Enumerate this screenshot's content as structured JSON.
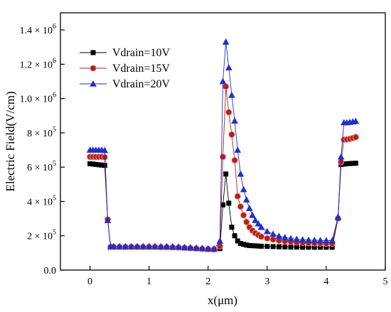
{
  "chart_data": {
    "type": "scatter",
    "xlabel": "x(μm)",
    "ylabel": "Electric Field(V/cm)",
    "xlim": [
      -0.5,
      5
    ],
    "ylim": [
      0,
      1500000
    ],
    "x_ticks": [
      0,
      1,
      2,
      3,
      4,
      5
    ],
    "x_tick_labels": [
      "0",
      "1",
      "2",
      "3",
      "4",
      "5"
    ],
    "y_ticks": [
      0,
      200000,
      400000,
      600000,
      800000,
      1000000,
      1200000,
      1400000
    ],
    "y_tick_labels": [
      {
        "mantissa": "0.0",
        "exp": ""
      },
      {
        "mantissa": "2 × 10",
        "exp": "5"
      },
      {
        "mantissa": "4 × 10",
        "exp": "5"
      },
      {
        "mantissa": "6 × 10",
        "exp": "5"
      },
      {
        "mantissa": "8 × 10",
        "exp": "5"
      },
      {
        "mantissa": "1.0 × 10",
        "exp": "6"
      },
      {
        "mantissa": "1.2 × 10",
        "exp": "6"
      },
      {
        "mantissa": "1.4 × 10",
        "exp": "6"
      }
    ],
    "grid": false,
    "legend_position": "top-left",
    "series": [
      {
        "name": "Vdrain=10V",
        "marker": "square",
        "color": "#000000",
        "x": [
          0,
          0.05,
          0.1,
          0.15,
          0.2,
          0.25,
          0.3,
          0.35,
          0.4,
          0.5,
          0.6,
          0.7,
          0.8,
          0.9,
          1.0,
          1.1,
          1.2,
          1.3,
          1.4,
          1.5,
          1.6,
          1.7,
          1.8,
          1.9,
          2.0,
          2.1,
          2.2,
          2.25,
          2.3,
          2.35,
          2.4,
          2.45,
          2.5,
          2.55,
          2.6,
          2.65,
          2.7,
          2.75,
          2.8,
          2.85,
          2.9,
          3.0,
          3.1,
          3.2,
          3.3,
          3.4,
          3.5,
          3.6,
          3.7,
          3.8,
          3.9,
          4.0,
          4.1,
          4.2,
          4.25,
          4.3,
          4.35,
          4.4,
          4.45,
          4.5
        ],
        "y": [
          620000,
          618000,
          616000,
          614000,
          612000,
          610000,
          290000,
          133000,
          133000,
          133000,
          133000,
          133000,
          133000,
          133000,
          133000,
          133000,
          132000,
          132000,
          131000,
          130000,
          128000,
          126000,
          124000,
          122000,
          120000,
          119000,
          125000,
          380000,
          560000,
          390000,
          250000,
          200000,
          170000,
          155000,
          150000,
          146000,
          143000,
          142000,
          141000,
          140000,
          139000,
          138000,
          137000,
          136000,
          135000,
          134000,
          134000,
          133000,
          133000,
          133000,
          133000,
          133000,
          133000,
          300000,
          615000,
          618000,
          620000,
          621000,
          622000,
          623000
        ]
      },
      {
        "name": "Vdrain=15V",
        "marker": "circle",
        "color": "#b0221a",
        "x": [
          0,
          0.05,
          0.1,
          0.15,
          0.2,
          0.25,
          0.3,
          0.35,
          0.4,
          0.5,
          0.6,
          0.7,
          0.8,
          0.9,
          1.0,
          1.1,
          1.2,
          1.3,
          1.4,
          1.5,
          1.6,
          1.7,
          1.8,
          1.9,
          2.0,
          2.1,
          2.2,
          2.25,
          2.3,
          2.35,
          2.4,
          2.45,
          2.5,
          2.55,
          2.6,
          2.65,
          2.7,
          2.75,
          2.8,
          2.85,
          2.9,
          3.0,
          3.1,
          3.2,
          3.3,
          3.4,
          3.5,
          3.6,
          3.7,
          3.8,
          3.9,
          4.0,
          4.1,
          4.2,
          4.25,
          4.3,
          4.35,
          4.4,
          4.45,
          4.5
        ],
        "y": [
          660000,
          660000,
          660000,
          660000,
          660000,
          658000,
          295000,
          135000,
          135000,
          135000,
          135000,
          135000,
          135000,
          135000,
          135000,
          135000,
          134000,
          134000,
          133000,
          132000,
          130000,
          128000,
          126000,
          124000,
          122000,
          121000,
          140000,
          660000,
          1070000,
          920000,
          790000,
          640000,
          430000,
          370000,
          320000,
          280000,
          250000,
          230000,
          215000,
          205000,
          195000,
          185000,
          178000,
          172000,
          168000,
          165000,
          162000,
          160000,
          158000,
          157000,
          156000,
          155000,
          155000,
          300000,
          630000,
          760000,
          762000,
          765000,
          770000,
          775000
        ]
      },
      {
        "name": "Vdrain=20V",
        "marker": "triangle",
        "color": "#1f2fd0",
        "x": [
          0,
          0.05,
          0.1,
          0.15,
          0.2,
          0.25,
          0.3,
          0.35,
          0.4,
          0.5,
          0.6,
          0.7,
          0.8,
          0.9,
          1.0,
          1.1,
          1.2,
          1.3,
          1.4,
          1.5,
          1.6,
          1.7,
          1.8,
          1.9,
          2.0,
          2.1,
          2.2,
          2.25,
          2.3,
          2.35,
          2.4,
          2.45,
          2.5,
          2.55,
          2.6,
          2.65,
          2.7,
          2.75,
          2.8,
          2.85,
          2.9,
          3.0,
          3.1,
          3.2,
          3.3,
          3.4,
          3.5,
          3.6,
          3.7,
          3.8,
          3.9,
          4.0,
          4.1,
          4.2,
          4.25,
          4.3,
          4.35,
          4.4,
          4.45,
          4.5
        ],
        "y": [
          700000,
          700000,
          700000,
          700000,
          700000,
          698000,
          290000,
          138000,
          138000,
          138000,
          138000,
          138000,
          138000,
          138000,
          138000,
          138000,
          137000,
          137000,
          136000,
          135000,
          133000,
          131000,
          129000,
          127000,
          125000,
          124000,
          170000,
          1100000,
          1330000,
          1180000,
          1020000,
          870000,
          700000,
          560000,
          470000,
          410000,
          360000,
          320000,
          290000,
          270000,
          250000,
          225000,
          210000,
          198000,
          190000,
          184000,
          180000,
          177000,
          175000,
          174000,
          173000,
          172000,
          172000,
          310000,
          660000,
          860000,
          860000,
          862000,
          865000,
          868000
        ]
      }
    ]
  }
}
